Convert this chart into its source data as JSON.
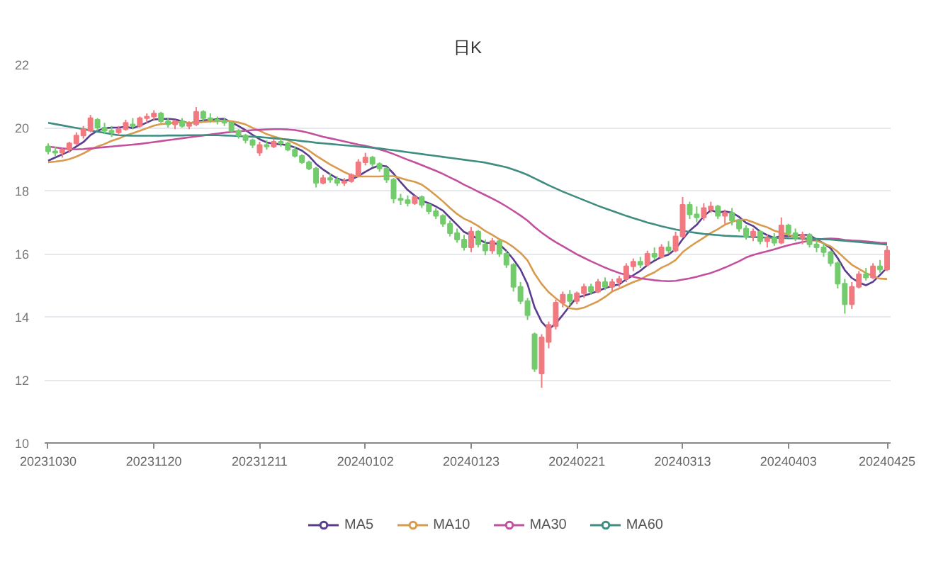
{
  "chart_data": {
    "type": "candlestick",
    "title": "日K",
    "categories": [
      "20231030",
      null,
      null,
      null,
      null,
      null,
      null,
      null,
      null,
      null,
      null,
      null,
      null,
      null,
      null,
      "20231120",
      null,
      null,
      null,
      null,
      null,
      null,
      null,
      null,
      null,
      null,
      null,
      null,
      null,
      null,
      "20231211",
      null,
      null,
      null,
      null,
      null,
      null,
      null,
      null,
      null,
      null,
      null,
      null,
      null,
      null,
      "20240102",
      null,
      null,
      null,
      null,
      null,
      null,
      null,
      null,
      null,
      null,
      null,
      null,
      null,
      null,
      "20240123",
      null,
      null,
      null,
      null,
      null,
      null,
      null,
      null,
      null,
      null,
      null,
      null,
      null,
      null,
      "20240221",
      null,
      null,
      null,
      null,
      null,
      null,
      null,
      null,
      null,
      null,
      null,
      null,
      null,
      null,
      "20240313",
      null,
      null,
      null,
      null,
      null,
      null,
      null,
      null,
      null,
      null,
      null,
      null,
      null,
      null,
      "20240403",
      null,
      null,
      null,
      null,
      null,
      null,
      null,
      null,
      null,
      null,
      null,
      null,
      null,
      "20240425"
    ],
    "ohlc": [
      [
        19.4,
        19.5,
        19.15,
        19.25
      ],
      [
        19.25,
        19.4,
        19.1,
        19.2
      ],
      [
        19.2,
        19.35,
        19.05,
        19.3
      ],
      [
        19.3,
        19.55,
        19.2,
        19.5
      ],
      [
        19.5,
        19.85,
        19.45,
        19.75
      ],
      [
        19.75,
        20.05,
        19.65,
        19.95
      ],
      [
        19.9,
        20.4,
        19.85,
        20.3
      ],
      [
        20.25,
        20.3,
        19.9,
        20.0
      ],
      [
        20.0,
        20.15,
        19.8,
        19.9
      ],
      [
        19.9,
        20.05,
        19.7,
        19.85
      ],
      [
        19.85,
        20.05,
        19.75,
        19.95
      ],
      [
        19.95,
        20.25,
        19.9,
        20.15
      ],
      [
        20.1,
        20.3,
        19.95,
        20.05
      ],
      [
        20.05,
        20.35,
        20.0,
        20.3
      ],
      [
        20.3,
        20.45,
        20.15,
        20.35
      ],
      [
        20.35,
        20.55,
        20.25,
        20.45
      ],
      [
        20.45,
        20.5,
        20.15,
        20.2
      ],
      [
        20.2,
        20.3,
        20.0,
        20.1
      ],
      [
        20.1,
        20.25,
        19.95,
        20.2
      ],
      [
        20.2,
        20.3,
        20.0,
        20.05
      ],
      [
        20.05,
        20.2,
        19.95,
        20.1
      ],
      [
        20.1,
        20.65,
        20.05,
        20.5
      ],
      [
        20.5,
        20.55,
        20.2,
        20.3
      ],
      [
        20.3,
        20.45,
        20.15,
        20.25
      ],
      [
        20.25,
        20.35,
        20.1,
        20.2
      ],
      [
        20.2,
        20.3,
        20.05,
        20.15
      ],
      [
        20.15,
        20.2,
        19.85,
        19.9
      ],
      [
        19.9,
        19.95,
        19.65,
        19.75
      ],
      [
        19.75,
        19.8,
        19.5,
        19.6
      ],
      [
        19.6,
        19.65,
        19.35,
        19.45
      ],
      [
        19.2,
        19.55,
        19.1,
        19.45
      ],
      [
        19.45,
        19.6,
        19.3,
        19.4
      ],
      [
        19.4,
        19.65,
        19.35,
        19.55
      ],
      [
        19.55,
        19.65,
        19.4,
        19.5
      ],
      [
        19.5,
        19.55,
        19.25,
        19.3
      ],
      [
        19.3,
        19.4,
        19.05,
        19.1
      ],
      [
        19.1,
        19.15,
        18.85,
        18.9
      ],
      [
        18.9,
        18.95,
        18.65,
        18.7
      ],
      [
        18.7,
        18.75,
        18.1,
        18.25
      ],
      [
        18.25,
        18.5,
        18.2,
        18.4
      ],
      [
        18.4,
        18.55,
        18.25,
        18.35
      ],
      [
        18.35,
        18.45,
        18.15,
        18.25
      ],
      [
        18.25,
        18.4,
        18.15,
        18.3
      ],
      [
        18.3,
        18.55,
        18.25,
        18.5
      ],
      [
        18.5,
        19.0,
        18.45,
        18.9
      ],
      [
        18.9,
        19.2,
        18.8,
        19.05
      ],
      [
        19.05,
        19.1,
        18.75,
        18.85
      ],
      [
        18.85,
        18.9,
        18.6,
        18.7
      ],
      [
        18.7,
        18.75,
        18.25,
        18.35
      ],
      [
        18.35,
        18.4,
        17.6,
        17.75
      ],
      [
        17.75,
        17.9,
        17.55,
        17.7
      ],
      [
        17.7,
        17.85,
        17.5,
        17.6
      ],
      [
        17.6,
        17.85,
        17.55,
        17.8
      ],
      [
        17.8,
        17.85,
        17.45,
        17.55
      ],
      [
        17.55,
        17.6,
        17.25,
        17.35
      ],
      [
        17.35,
        17.45,
        17.1,
        17.2
      ],
      [
        17.2,
        17.25,
        16.85,
        16.95
      ],
      [
        16.95,
        17.05,
        16.55,
        16.65
      ],
      [
        16.65,
        16.8,
        16.35,
        16.45
      ],
      [
        16.45,
        16.6,
        16.1,
        16.2
      ],
      [
        16.2,
        16.85,
        16.05,
        16.7
      ],
      [
        16.7,
        16.75,
        16.2,
        16.3
      ],
      [
        16.3,
        16.45,
        15.95,
        16.1
      ],
      [
        16.1,
        16.5,
        16.0,
        16.4
      ],
      [
        16.4,
        16.45,
        15.9,
        16.0
      ],
      [
        16.0,
        16.1,
        15.55,
        15.65
      ],
      [
        15.65,
        15.7,
        14.8,
        14.95
      ],
      [
        14.95,
        15.1,
        14.4,
        14.5
      ],
      [
        14.5,
        14.6,
        13.9,
        14.05
      ],
      [
        13.45,
        13.5,
        12.25,
        12.35
      ],
      [
        12.2,
        13.45,
        11.75,
        13.35
      ],
      [
        13.2,
        13.85,
        13.0,
        13.75
      ],
      [
        13.7,
        14.55,
        13.6,
        14.45
      ],
      [
        14.45,
        14.8,
        14.3,
        14.7
      ],
      [
        14.7,
        14.85,
        14.35,
        14.5
      ],
      [
        14.5,
        14.8,
        14.4,
        14.75
      ],
      [
        14.75,
        15.05,
        14.6,
        14.95
      ],
      [
        14.95,
        15.05,
        14.7,
        14.8
      ],
      [
        14.8,
        15.2,
        14.75,
        15.1
      ],
      [
        15.1,
        15.25,
        14.85,
        14.95
      ],
      [
        14.95,
        15.2,
        14.8,
        15.1
      ],
      [
        15.1,
        15.3,
        14.95,
        15.2
      ],
      [
        15.2,
        15.7,
        15.1,
        15.6
      ],
      [
        15.6,
        15.85,
        15.45,
        15.75
      ],
      [
        15.75,
        15.9,
        15.55,
        15.65
      ],
      [
        15.65,
        16.1,
        15.6,
        16.0
      ],
      [
        16.0,
        16.2,
        15.8,
        15.9
      ],
      [
        15.9,
        16.3,
        15.85,
        16.2
      ],
      [
        16.2,
        16.4,
        16.0,
        16.1
      ],
      [
        16.1,
        16.7,
        16.05,
        16.55
      ],
      [
        16.55,
        17.8,
        16.5,
        17.55
      ],
      [
        17.55,
        17.65,
        17.1,
        17.25
      ],
      [
        17.25,
        17.5,
        17.0,
        17.15
      ],
      [
        17.15,
        17.6,
        17.05,
        17.45
      ],
      [
        17.4,
        17.65,
        17.3,
        17.5
      ],
      [
        17.5,
        17.55,
        17.1,
        17.2
      ],
      [
        17.2,
        17.4,
        16.95,
        17.3
      ],
      [
        17.3,
        17.45,
        16.9,
        17.05
      ],
      [
        17.05,
        17.1,
        16.7,
        16.8
      ],
      [
        16.8,
        16.9,
        16.45,
        16.55
      ],
      [
        16.55,
        16.8,
        16.4,
        16.7
      ],
      [
        16.7,
        16.75,
        16.3,
        16.4
      ],
      [
        16.4,
        16.6,
        16.2,
        16.5
      ],
      [
        16.5,
        16.65,
        16.25,
        16.35
      ],
      [
        16.35,
        17.15,
        16.3,
        16.9
      ],
      [
        16.9,
        16.95,
        16.55,
        16.65
      ],
      [
        16.65,
        16.8,
        16.4,
        16.5
      ],
      [
        16.5,
        16.7,
        16.3,
        16.6
      ],
      [
        16.6,
        16.65,
        16.2,
        16.3
      ],
      [
        16.3,
        16.45,
        16.05,
        16.2
      ],
      [
        16.2,
        16.35,
        15.9,
        16.05
      ],
      [
        16.05,
        16.1,
        15.6,
        15.7
      ],
      [
        15.7,
        15.75,
        14.9,
        15.05
      ],
      [
        15.05,
        15.2,
        14.1,
        14.4
      ],
      [
        14.4,
        15.1,
        14.25,
        14.95
      ],
      [
        14.95,
        15.45,
        14.9,
        15.35
      ],
      [
        15.35,
        15.55,
        15.15,
        15.25
      ],
      [
        15.25,
        15.7,
        15.2,
        15.6
      ],
      [
        15.6,
        15.8,
        15.4,
        15.5
      ],
      [
        15.5,
        16.25,
        15.45,
        16.1
      ]
    ],
    "colors": [
      "#72cc6c",
      "#72cc6c",
      "#f07a80",
      "#f07a80",
      "#f07a80",
      "#f07a80",
      "#f07a80",
      "#72cc6c",
      "#72cc6c",
      "#72cc6c",
      "#f07a80",
      "#f07a80",
      "#72cc6c",
      "#f07a80",
      "#f07a80",
      "#f07a80",
      "#72cc6c",
      "#72cc6c",
      "#f07a80",
      "#72cc6c",
      "#f07a80",
      "#f07a80",
      "#72cc6c",
      "#72cc6c",
      "#72cc6c",
      "#72cc6c",
      "#72cc6c",
      "#72cc6c",
      "#72cc6c",
      "#72cc6c",
      "#f07a80",
      "#72cc6c",
      "#f07a80",
      "#72cc6c",
      "#72cc6c",
      "#72cc6c",
      "#72cc6c",
      "#72cc6c",
      "#72cc6c",
      "#f07a80",
      "#72cc6c",
      "#72cc6c",
      "#f07a80",
      "#f07a80",
      "#f07a80",
      "#f07a80",
      "#72cc6c",
      "#72cc6c",
      "#72cc6c",
      "#72cc6c",
      "#72cc6c",
      "#72cc6c",
      "#f07a80",
      "#72cc6c",
      "#72cc6c",
      "#72cc6c",
      "#72cc6c",
      "#72cc6c",
      "#72cc6c",
      "#72cc6c",
      "#f07a80",
      "#72cc6c",
      "#72cc6c",
      "#f07a80",
      "#72cc6c",
      "#72cc6c",
      "#72cc6c",
      "#72cc6c",
      "#72cc6c",
      "#72cc6c",
      "#f07a80",
      "#f07a80",
      "#f07a80",
      "#f07a80",
      "#72cc6c",
      "#f07a80",
      "#f07a80",
      "#72cc6c",
      "#f07a80",
      "#72cc6c",
      "#f07a80",
      "#f07a80",
      "#f07a80",
      "#f07a80",
      "#72cc6c",
      "#f07a80",
      "#72cc6c",
      "#f07a80",
      "#72cc6c",
      "#f07a80",
      "#f07a80",
      "#72cc6c",
      "#72cc6c",
      "#f07a80",
      "#f07a80",
      "#72cc6c",
      "#f07a80",
      "#72cc6c",
      "#72cc6c",
      "#72cc6c",
      "#f07a80",
      "#72cc6c",
      "#f07a80",
      "#72cc6c",
      "#f07a80",
      "#72cc6c",
      "#72cc6c",
      "#f07a80",
      "#72cc6c",
      "#72cc6c",
      "#72cc6c",
      "#72cc6c",
      "#72cc6c",
      "#72cc6c",
      "#f07a80",
      "#f07a80",
      "#72cc6c",
      "#f07a80",
      "#72cc6c",
      "#f07a80"
    ],
    "series": [
      {
        "name": "MA5",
        "type": "line",
        "color": "#5a3d8f",
        "values": [
          18.95,
          19.05,
          19.15,
          19.25,
          19.4,
          19.54,
          19.76,
          19.9,
          19.98,
          20.0,
          20.0,
          20.03,
          19.98,
          20.06,
          20.16,
          20.26,
          20.27,
          20.28,
          20.26,
          20.2,
          20.13,
          20.19,
          20.23,
          20.24,
          20.27,
          20.28,
          20.16,
          20.05,
          19.92,
          19.77,
          19.63,
          19.53,
          19.49,
          19.47,
          19.44,
          19.37,
          19.27,
          19.1,
          18.85,
          18.67,
          18.52,
          18.39,
          18.31,
          18.36,
          18.46,
          18.6,
          18.72,
          18.8,
          18.77,
          18.54,
          18.27,
          18.02,
          17.84,
          17.68,
          17.6,
          17.5,
          17.37,
          17.14,
          16.92,
          16.69,
          16.59,
          16.46,
          16.35,
          16.34,
          16.3,
          16.09,
          15.82,
          15.5,
          15.03,
          14.3,
          13.84,
          13.6,
          13.79,
          14.06,
          14.35,
          14.62,
          14.67,
          14.74,
          14.82,
          14.91,
          14.98,
          15.03,
          15.19,
          15.32,
          15.46,
          15.64,
          15.78,
          15.9,
          15.97,
          16.15,
          16.46,
          16.73,
          16.92,
          17.19,
          17.38,
          17.31,
          17.34,
          17.3,
          17.17,
          16.98,
          16.88,
          16.7,
          16.59,
          16.5,
          16.57,
          16.56,
          16.58,
          16.6,
          16.59,
          16.45,
          16.33,
          16.17,
          15.86,
          15.48,
          15.23,
          15.09,
          15.0,
          15.11,
          15.33,
          15.56
        ]
      },
      {
        "name": "MA10",
        "type": "line",
        "color": "#d89b4e",
        "values": [
          18.9,
          18.92,
          18.95,
          19.0,
          19.08,
          19.18,
          19.3,
          19.4,
          19.48,
          19.58,
          19.65,
          19.75,
          19.82,
          19.9,
          19.98,
          20.06,
          20.11,
          20.13,
          20.16,
          20.18,
          20.15,
          20.16,
          20.18,
          20.2,
          20.2,
          20.22,
          20.2,
          20.16,
          20.1,
          19.99,
          19.9,
          19.79,
          19.72,
          19.65,
          19.6,
          19.5,
          19.4,
          19.27,
          19.11,
          18.97,
          18.83,
          18.71,
          18.59,
          18.49,
          18.45,
          18.45,
          18.45,
          18.45,
          18.46,
          18.46,
          18.4,
          18.33,
          18.28,
          18.19,
          18.03,
          17.85,
          17.66,
          17.45,
          17.26,
          17.11,
          17.01,
          16.88,
          16.72,
          16.6,
          16.46,
          16.36,
          16.21,
          16.03,
          15.79,
          15.37,
          15.04,
          14.78,
          14.59,
          14.42,
          14.27,
          14.24,
          14.29,
          14.39,
          14.49,
          14.63,
          14.8,
          14.9,
          15.0,
          15.1,
          15.18,
          15.31,
          15.41,
          15.56,
          15.66,
          15.8,
          16.05,
          16.22,
          16.37,
          16.51,
          16.66,
          16.78,
          16.92,
          17.01,
          17.08,
          17.08,
          17.0,
          16.91,
          16.84,
          16.73,
          16.67,
          16.61,
          16.53,
          16.48,
          16.45,
          16.41,
          16.33,
          16.23,
          16.06,
          15.85,
          15.65,
          15.52,
          15.39,
          15.29,
          15.21,
          15.2
        ]
      },
      {
        "name": "MA30",
        "type": "line",
        "color": "#c2509e",
        "values": [
          19.4,
          19.37,
          19.34,
          19.32,
          19.31,
          19.32,
          19.34,
          19.36,
          19.38,
          19.4,
          19.42,
          19.44,
          19.46,
          19.48,
          19.51,
          19.54,
          19.57,
          19.6,
          19.63,
          19.66,
          19.69,
          19.72,
          19.75,
          19.78,
          19.81,
          19.84,
          19.86,
          19.88,
          19.9,
          19.92,
          19.93,
          19.94,
          19.95,
          19.95,
          19.94,
          19.92,
          19.88,
          19.83,
          19.77,
          19.71,
          19.66,
          19.61,
          19.56,
          19.51,
          19.46,
          19.42,
          19.37,
          19.31,
          19.24,
          19.16,
          19.07,
          18.98,
          18.9,
          18.81,
          18.72,
          18.63,
          18.53,
          18.42,
          18.31,
          18.19,
          18.08,
          17.97,
          17.86,
          17.75,
          17.63,
          17.5,
          17.36,
          17.21,
          17.05,
          16.85,
          16.67,
          16.51,
          16.37,
          16.24,
          16.11,
          15.98,
          15.87,
          15.76,
          15.66,
          15.56,
          15.47,
          15.39,
          15.33,
          15.27,
          15.22,
          15.19,
          15.16,
          15.14,
          15.13,
          15.14,
          15.18,
          15.22,
          15.27,
          15.33,
          15.39,
          15.47,
          15.56,
          15.66,
          15.76,
          15.88,
          15.96,
          16.02,
          16.08,
          16.14,
          16.21,
          16.27,
          16.32,
          16.37,
          16.41,
          16.44,
          16.47,
          16.48,
          16.47,
          16.44,
          16.42,
          16.41,
          16.39,
          16.37,
          16.35,
          16.34
        ]
      },
      {
        "name": "MA60",
        "type": "line",
        "color": "#3f8d80",
        "values": [
          20.15,
          20.11,
          20.07,
          20.03,
          19.99,
          19.95,
          19.91,
          19.87,
          19.83,
          19.79,
          19.76,
          19.75,
          19.74,
          19.74,
          19.74,
          19.74,
          19.74,
          19.75,
          19.75,
          19.75,
          19.76,
          19.76,
          19.76,
          19.76,
          19.76,
          19.75,
          19.74,
          19.73,
          19.72,
          19.71,
          19.7,
          19.68,
          19.66,
          19.64,
          19.62,
          19.6,
          19.57,
          19.55,
          19.52,
          19.5,
          19.48,
          19.46,
          19.44,
          19.42,
          19.4,
          19.38,
          19.36,
          19.34,
          19.31,
          19.28,
          19.25,
          19.22,
          19.19,
          19.16,
          19.13,
          19.1,
          19.07,
          19.04,
          19.01,
          18.98,
          18.95,
          18.92,
          18.89,
          18.84,
          18.79,
          18.74,
          18.67,
          18.59,
          18.5,
          18.39,
          18.28,
          18.17,
          18.07,
          17.97,
          17.88,
          17.79,
          17.7,
          17.61,
          17.52,
          17.44,
          17.36,
          17.28,
          17.2,
          17.13,
          17.06,
          16.99,
          16.93,
          16.87,
          16.82,
          16.77,
          16.73,
          16.69,
          16.66,
          16.63,
          16.61,
          16.59,
          16.57,
          16.56,
          16.55,
          16.54,
          16.53,
          16.52,
          16.51,
          16.5,
          16.5,
          16.49,
          16.49,
          16.48,
          16.48,
          16.47,
          16.46,
          16.45,
          16.43,
          16.41,
          16.39,
          16.37,
          16.35,
          16.33,
          16.31,
          16.29
        ]
      }
    ],
    "ylim": [
      10,
      22
    ],
    "yticks": [
      10,
      12,
      14,
      16,
      18,
      20,
      22
    ],
    "grid": "y",
    "legend": "bottom"
  }
}
